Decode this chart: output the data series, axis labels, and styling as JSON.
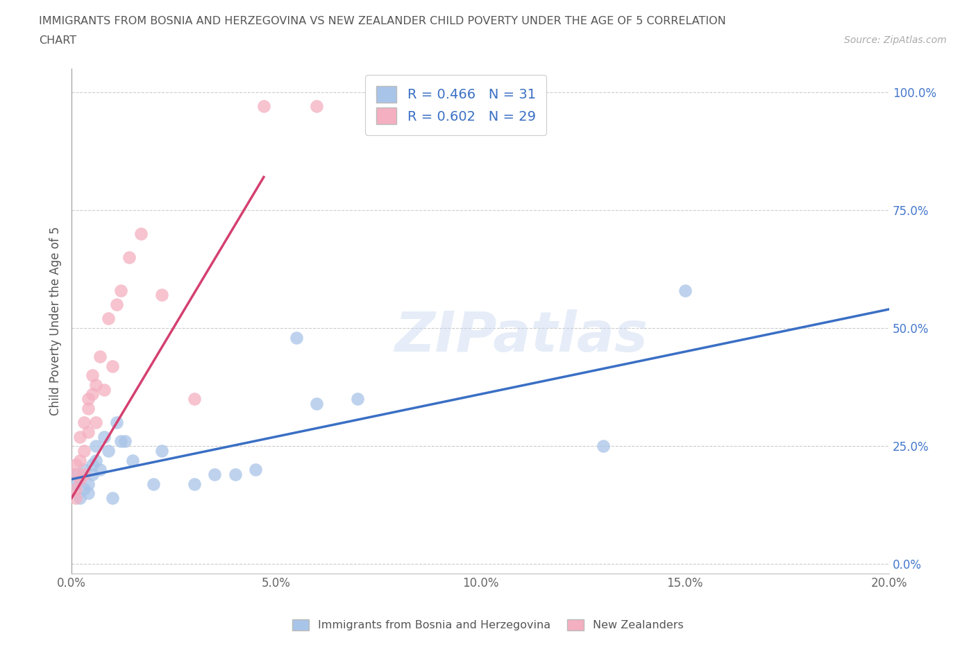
{
  "title_line1": "IMMIGRANTS FROM BOSNIA AND HERZEGOVINA VS NEW ZEALANDER CHILD POVERTY UNDER THE AGE OF 5 CORRELATION",
  "title_line2": "CHART",
  "source_text": "Source: ZipAtlas.com",
  "ylabel": "Child Poverty Under the Age of 5",
  "watermark": "ZIPatlas",
  "legend_r1": "R = 0.466",
  "legend_n1": "N = 31",
  "legend_r2": "R = 0.602",
  "legend_n2": "N = 29",
  "color_blue": "#a8c4e8",
  "color_pink": "#f4afc0",
  "color_blue_line": "#3a6fc4",
  "color_pink_line": "#d44070",
  "xlim": [
    0.0,
    0.2
  ],
  "ylim": [
    -0.02,
    1.05
  ],
  "xticks": [
    0.0,
    0.05,
    0.1,
    0.15,
    0.2
  ],
  "yticks": [
    0.0,
    0.25,
    0.5,
    0.75,
    1.0
  ],
  "xtick_labels": [
    "0.0%",
    "5.0%",
    "10.0%",
    "15.0%",
    "20.0%"
  ],
  "ytick_labels": [
    "0.0%",
    "25.0%",
    "50.0%",
    "75.0%",
    "100.0%"
  ],
  "blue_x": [
    0.001,
    0.001,
    0.002,
    0.002,
    0.003,
    0.003,
    0.004,
    0.004,
    0.005,
    0.005,
    0.006,
    0.006,
    0.007,
    0.008,
    0.009,
    0.01,
    0.011,
    0.012,
    0.013,
    0.015,
    0.02,
    0.022,
    0.03,
    0.035,
    0.04,
    0.045,
    0.055,
    0.06,
    0.07,
    0.13,
    0.15
  ],
  "blue_y": [
    0.19,
    0.17,
    0.18,
    0.14,
    0.16,
    0.2,
    0.17,
    0.15,
    0.21,
    0.19,
    0.22,
    0.25,
    0.2,
    0.27,
    0.24,
    0.14,
    0.3,
    0.26,
    0.26,
    0.22,
    0.17,
    0.24,
    0.17,
    0.19,
    0.19,
    0.2,
    0.48,
    0.34,
    0.35,
    0.25,
    0.58
  ],
  "pink_x": [
    0.001,
    0.001,
    0.001,
    0.001,
    0.002,
    0.002,
    0.002,
    0.003,
    0.003,
    0.003,
    0.004,
    0.004,
    0.004,
    0.005,
    0.005,
    0.006,
    0.006,
    0.007,
    0.008,
    0.009,
    0.01,
    0.011,
    0.012,
    0.014,
    0.017,
    0.022,
    0.03,
    0.047,
    0.06
  ],
  "pink_y": [
    0.14,
    0.16,
    0.19,
    0.21,
    0.18,
    0.22,
    0.27,
    0.19,
    0.24,
    0.3,
    0.28,
    0.33,
    0.35,
    0.36,
    0.4,
    0.3,
    0.38,
    0.44,
    0.37,
    0.52,
    0.42,
    0.55,
    0.58,
    0.65,
    0.7,
    0.57,
    0.35,
    0.97,
    0.97
  ],
  "blue_trend_x0": 0.0,
  "blue_trend_x1": 0.2,
  "blue_trend_y0": 0.18,
  "blue_trend_y1": 0.54,
  "pink_trend_x0": 0.0,
  "pink_trend_x1": 0.047,
  "pink_trend_y0": 0.14,
  "pink_trend_y1": 0.82
}
